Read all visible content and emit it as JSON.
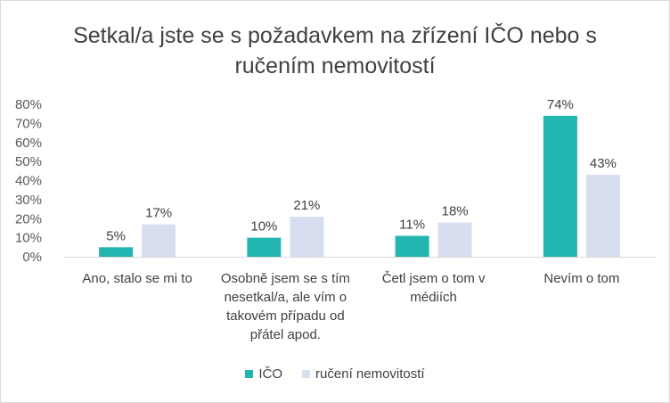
{
  "chart_data": {
    "type": "bar",
    "title": "Setkal/a jste se s požadavkem na zřízení IČO nebo s ručením nemovitostí",
    "categories": [
      "Ano, stalo se mi to",
      "Osobně jsem se s tím nesetkal/a, ale vím o takovém případu od přátel apod.",
      "Četl jsem o tom v médiích",
      "Nevím o tom"
    ],
    "series": [
      {
        "name": "IČO",
        "values": [
          5,
          10,
          11,
          74
        ],
        "color": "#23b5b0"
      },
      {
        "name": "ručení nemovitostí",
        "values": [
          17,
          21,
          18,
          43
        ],
        "color": "#d6deef"
      }
    ],
    "yticks": [
      "0%",
      "10%",
      "20%",
      "30%",
      "40%",
      "50%",
      "60%",
      "70%",
      "80%"
    ],
    "data_labels": [
      [
        "5%",
        "10%",
        "11%",
        "74%"
      ],
      [
        "17%",
        "21%",
        "18%",
        "43%"
      ]
    ],
    "ylim": [
      0,
      80
    ],
    "grid": false,
    "legend": "bottom"
  }
}
